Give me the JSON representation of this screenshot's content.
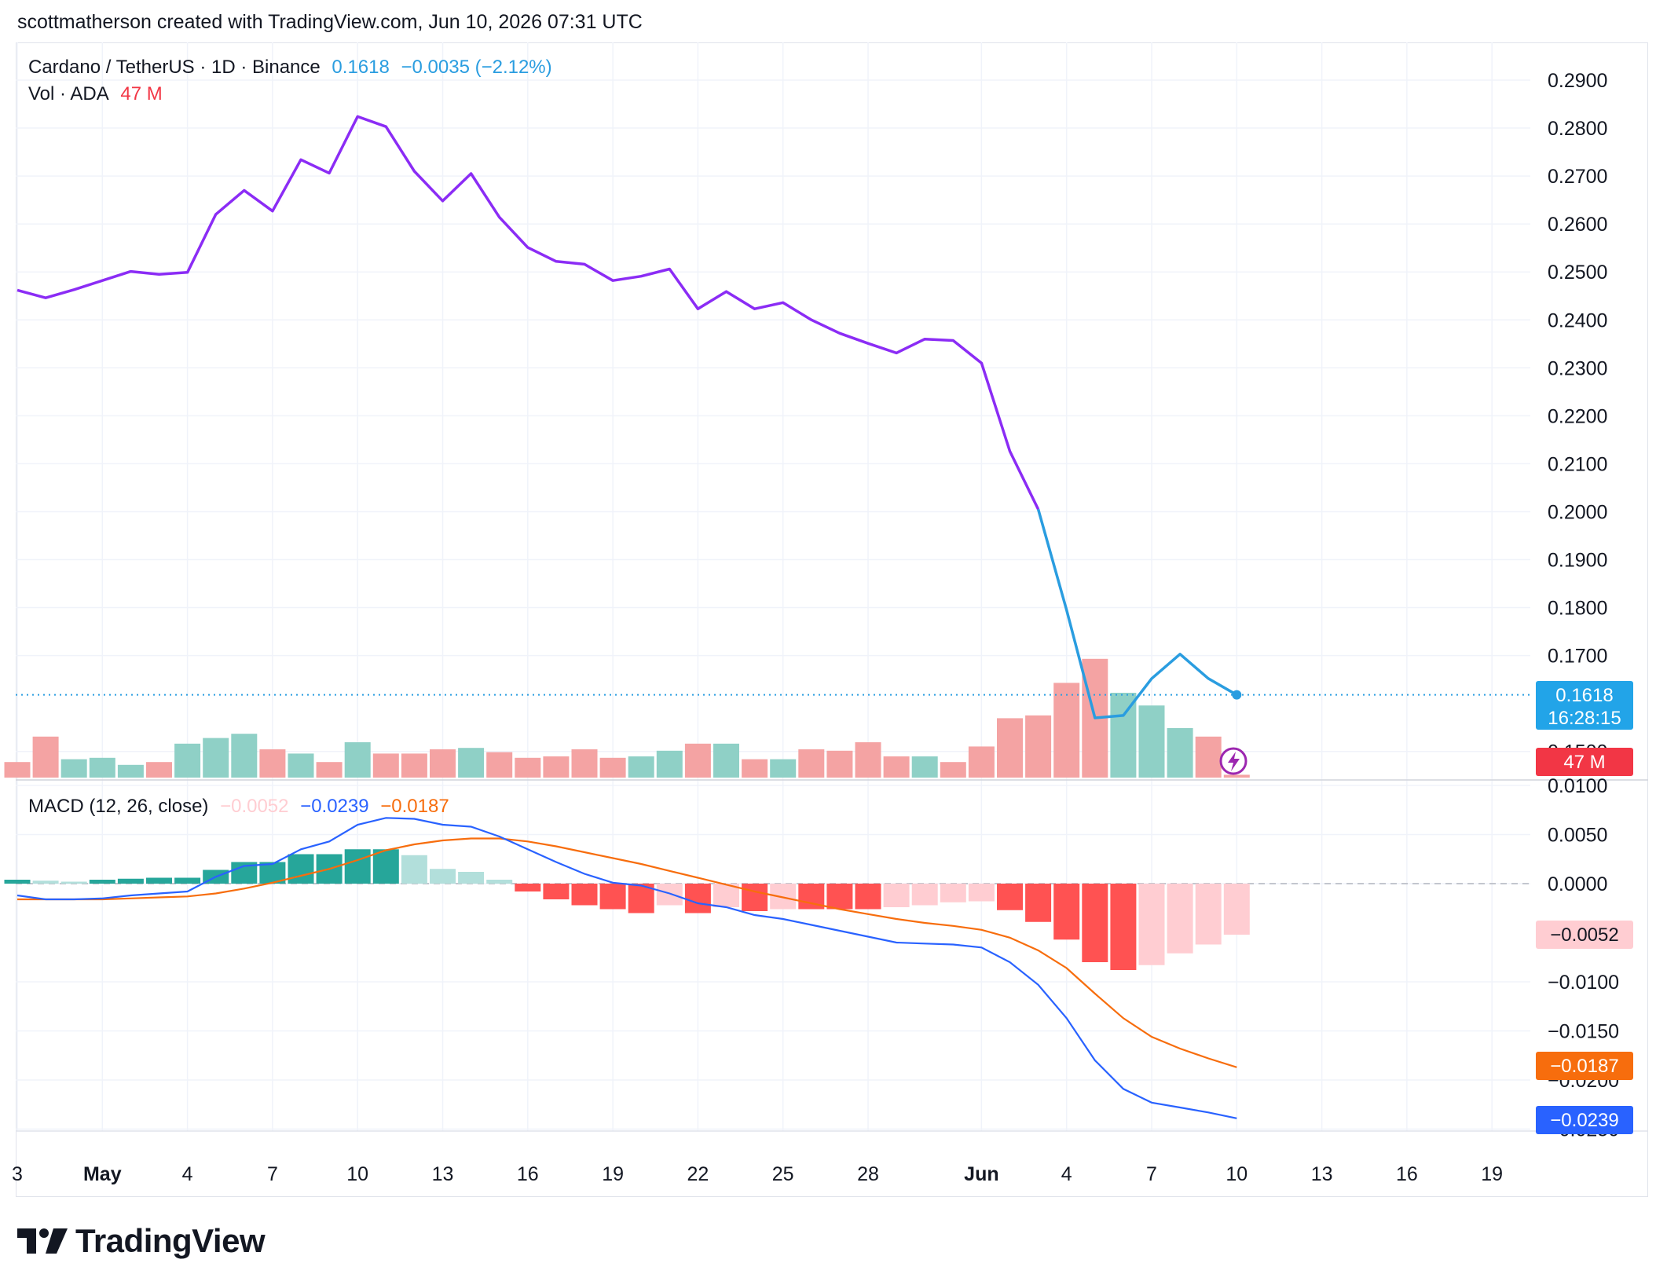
{
  "header": {
    "text": "scottmatherson created with TradingView.com, Jun 10, 2026 07:31 UTC"
  },
  "legend": {
    "symbol": "Cardano / TetherUS · 1D · Binance",
    "price": "0.1618",
    "change": "−0.0035 (−2.12%)",
    "volume_label": "Vol · ADA",
    "volume_value": "47 M",
    "macd_label": "MACD (12, 26, close)",
    "macd_hist": "−0.0052",
    "macd_line": "−0.0239",
    "macd_signal": "−0.0187"
  },
  "price_tags": {
    "last_price": "0.1618",
    "countdown": "16:28:15",
    "volume": "47 M",
    "macd_hist": "−0.0052",
    "macd_signal": "−0.0187",
    "macd_line": "−0.0239"
  },
  "brand": {
    "name": "TradingView",
    "logo_icon": "tradingview-logo-icon"
  },
  "colors": {
    "price_line_early": "#8b2cf5",
    "price_line_late": "#2a9de0",
    "vol_up": "#8fd0c6",
    "vol_down": "#f4a3a3",
    "macd_line": "#2962ff",
    "signal_line": "#f76d0d",
    "hist_pos_strong": "#26a69a",
    "hist_pos_weak": "#b2dfdb",
    "hist_neg_strong": "#ff5252",
    "hist_neg_weak": "#ffcdd2"
  },
  "chart_data": {
    "type": "line",
    "x_axis": {
      "ticks": [
        {
          "day": 0,
          "label": "3"
        },
        {
          "day": 3,
          "label": "May"
        },
        {
          "day": 6,
          "label": "4"
        },
        {
          "day": 9,
          "label": "7"
        },
        {
          "day": 12,
          "label": "10"
        },
        {
          "day": 15,
          "label": "13"
        },
        {
          "day": 18,
          "label": "16"
        },
        {
          "day": 21,
          "label": "19"
        },
        {
          "day": 24,
          "label": "22"
        },
        {
          "day": 27,
          "label": "25"
        },
        {
          "day": 30,
          "label": "28"
        },
        {
          "day": 34,
          "label": "Jun"
        },
        {
          "day": 37,
          "label": "4"
        },
        {
          "day": 40,
          "label": "7"
        },
        {
          "day": 43,
          "label": "10"
        },
        {
          "day": 46,
          "label": "13"
        },
        {
          "day": 49,
          "label": "16"
        },
        {
          "day": 52,
          "label": "19"
        }
      ]
    },
    "price_axis": {
      "range": [
        0.1495,
        0.2925
      ],
      "ticks": [
        "0.2900",
        "0.2800",
        "0.2700",
        "0.2600",
        "0.2500",
        "0.2400",
        "0.2300",
        "0.2200",
        "0.2100",
        "0.2000",
        "0.1900",
        "0.1800",
        "0.1700",
        "0.1500"
      ]
    },
    "price": [
      0.2462,
      0.2446,
      0.2463,
      0.2482,
      0.2501,
      0.2495,
      0.2499,
      0.262,
      0.267,
      0.2627,
      0.2734,
      0.2706,
      0.2824,
      0.2803,
      0.271,
      0.2648,
      0.2705,
      0.2614,
      0.2551,
      0.2522,
      0.2516,
      0.2482,
      0.2491,
      0.2506,
      0.2423,
      0.2459,
      0.2423,
      0.2436,
      0.24,
      0.2372,
      0.2351,
      0.2331,
      0.236,
      0.2357,
      0.231,
      0.2126,
      0.2005,
      0.1795,
      0.157,
      0.1575,
      0.1652,
      0.1703,
      0.1652,
      0.1618
    ],
    "price_highlight_from_index": 36,
    "last_price": 0.1618,
    "volume": {
      "values": [
        11,
        29,
        13,
        14,
        9,
        11,
        24,
        28,
        31,
        20,
        17,
        11,
        25,
        17,
        17,
        20,
        21,
        18,
        14,
        15,
        20,
        14,
        15,
        19,
        24,
        24,
        13,
        13,
        20,
        19,
        25,
        15,
        15,
        11,
        22,
        42,
        44,
        67,
        84,
        60,
        51,
        35,
        29,
        2
      ],
      "up": [
        false,
        false,
        true,
        true,
        true,
        false,
        true,
        true,
        true,
        false,
        true,
        false,
        true,
        false,
        false,
        false,
        true,
        false,
        false,
        false,
        false,
        false,
        true,
        true,
        false,
        true,
        false,
        true,
        false,
        false,
        false,
        false,
        true,
        false,
        false,
        false,
        false,
        false,
        false,
        true,
        true,
        true,
        false,
        false
      ],
      "max_scale": 110
    },
    "macd_axis": {
      "range": [
        -0.025,
        0.011
      ],
      "ticks": [
        "0.0100",
        "0.0050",
        "0.0000",
        "−0.0100",
        "−0.0150",
        "−0.0200",
        "−0.0250"
      ]
    },
    "macd_line": [
      -0.0012,
      -0.0016,
      -0.0016,
      -0.0015,
      -0.0012,
      -0.001,
      -0.0008,
      0.0007,
      0.0018,
      0.002,
      0.0035,
      0.0043,
      0.006,
      0.0067,
      0.0066,
      0.006,
      0.0058,
      0.0048,
      0.0035,
      0.0022,
      0.001,
      0.0001,
      -0.0002,
      -0.001,
      -0.002,
      -0.0024,
      -0.0032,
      -0.0036,
      -0.0042,
      -0.0048,
      -0.0054,
      -0.006,
      -0.0061,
      -0.0062,
      -0.0065,
      -0.008,
      -0.0103,
      -0.0137,
      -0.018,
      -0.0209,
      -0.0223,
      -0.0228,
      -0.0233,
      -0.0239
    ],
    "signal_line": [
      -0.0016,
      -0.0016,
      -0.0016,
      -0.0016,
      -0.0015,
      -0.0014,
      -0.0013,
      -0.001,
      -0.0005,
      0.0001,
      0.0008,
      0.0015,
      0.0024,
      0.0034,
      0.004,
      0.0044,
      0.0046,
      0.0046,
      0.0043,
      0.0038,
      0.0032,
      0.0026,
      0.002,
      0.0013,
      0.0006,
      -0.0001,
      -0.0008,
      -0.0014,
      -0.002,
      -0.0026,
      -0.0031,
      -0.0036,
      -0.004,
      -0.0043,
      -0.0047,
      -0.0055,
      -0.0068,
      -0.0086,
      -0.0112,
      -0.0137,
      -0.0156,
      -0.0168,
      -0.0178,
      -0.0187
    ],
    "histogram": [
      0.0004,
      0.0003,
      0.0002,
      0.0004,
      0.0005,
      0.0006,
      0.0006,
      0.0014,
      0.0022,
      0.0022,
      0.003,
      0.003,
      0.0035,
      0.0035,
      0.0029,
      0.0015,
      0.0012,
      0.0004,
      -0.0008,
      -0.0016,
      -0.0022,
      -0.0026,
      -0.003,
      -0.0022,
      -0.003,
      -0.0024,
      -0.0028,
      -0.0026,
      -0.0026,
      -0.0026,
      -0.0026,
      -0.0024,
      -0.0022,
      -0.0019,
      -0.0018,
      -0.0027,
      -0.0039,
      -0.0057,
      -0.008,
      -0.0088,
      -0.0083,
      -0.0071,
      -0.0062,
      -0.0052
    ]
  }
}
